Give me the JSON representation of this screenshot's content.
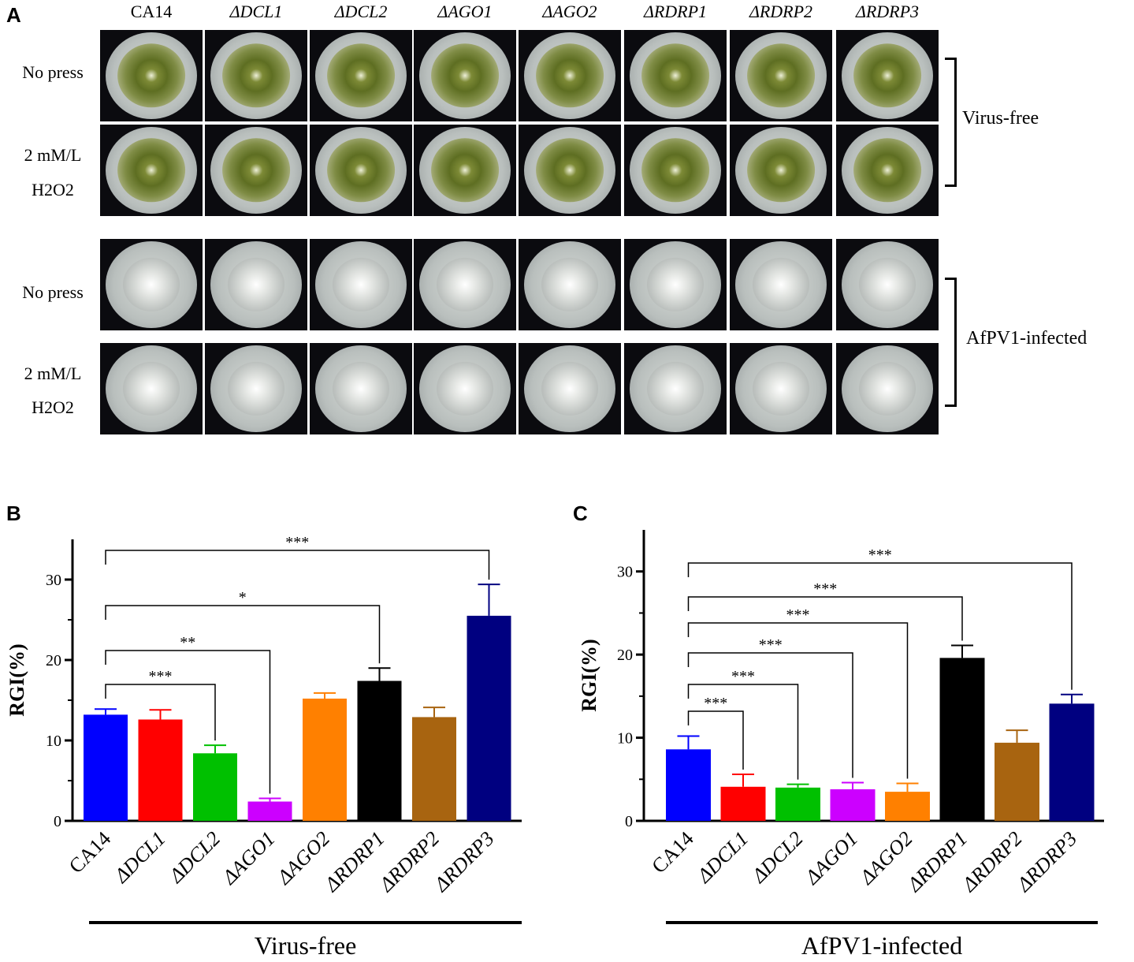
{
  "panels": {
    "a": "A",
    "b": "B",
    "c": "C"
  },
  "photo_panel": {
    "column_labels": [
      "CA14",
      "ΔDCL1",
      "ΔDCL2",
      "ΔAGO1",
      "ΔAGO2",
      "ΔRDRP1",
      "ΔRDRP2",
      "ΔRDRP3"
    ],
    "row_labels": {
      "no_press": "No press",
      "h2o2_line1": "2 mM/L",
      "h2o2_line2": "H2O2"
    },
    "group_labels": {
      "virus_free": "Virus-free",
      "infected": "AfPV1-infected"
    }
  },
  "chart_data": [
    {
      "type": "bar",
      "panel": "B",
      "categories": [
        "CA14",
        "ΔDCL1",
        "ΔDCL2",
        "ΔAGO1",
        "ΔAGO2",
        "ΔRDRP1",
        "ΔRDRP2",
        "ΔRDRP3"
      ],
      "values": [
        13.2,
        12.6,
        8.4,
        2.4,
        15.2,
        17.4,
        12.9,
        25.5
      ],
      "errors": [
        0.7,
        1.2,
        1.0,
        0.4,
        0.7,
        1.6,
        1.2,
        3.9
      ],
      "colors": [
        "#0000ff",
        "#ff0000",
        "#00c000",
        "#cc00ff",
        "#ff8000",
        "#000000",
        "#a86410",
        "#000080"
      ],
      "ylabel": "RGI(%)",
      "ylim": [
        0,
        35
      ],
      "yticks": [
        0,
        10,
        20,
        30
      ],
      "group_label": "Virus-free",
      "comparisons": [
        {
          "from": 0,
          "to": 2,
          "label": "***"
        },
        {
          "from": 0,
          "to": 3,
          "label": "**"
        },
        {
          "from": 0,
          "to": 5,
          "label": "*"
        },
        {
          "from": 0,
          "to": 7,
          "label": "***"
        }
      ]
    },
    {
      "type": "bar",
      "panel": "C",
      "categories": [
        "CA14",
        "ΔDCL1",
        "ΔDCL2",
        "ΔAGO1",
        "ΔAGO2",
        "ΔRDRP1",
        "ΔRDRP2",
        "ΔRDRP3"
      ],
      "values": [
        8.6,
        4.1,
        4.0,
        3.8,
        3.5,
        19.6,
        9.4,
        14.1
      ],
      "errors": [
        1.6,
        1.5,
        0.4,
        0.8,
        1.0,
        1.5,
        1.5,
        1.1
      ],
      "colors": [
        "#0000ff",
        "#ff0000",
        "#00c000",
        "#cc00ff",
        "#ff8000",
        "#000000",
        "#a86410",
        "#000080"
      ],
      "ylabel": "RGI(%)",
      "ylim": [
        0,
        35
      ],
      "yticks": [
        0,
        10,
        20,
        30
      ],
      "group_label": "AfPV1-infected",
      "comparisons": [
        {
          "from": 0,
          "to": 1,
          "label": "***"
        },
        {
          "from": 0,
          "to": 2,
          "label": "***"
        },
        {
          "from": 0,
          "to": 3,
          "label": "***"
        },
        {
          "from": 0,
          "to": 4,
          "label": "***"
        },
        {
          "from": 0,
          "to": 5,
          "label": "***"
        },
        {
          "from": 0,
          "to": 7,
          "label": "***"
        }
      ]
    }
  ]
}
